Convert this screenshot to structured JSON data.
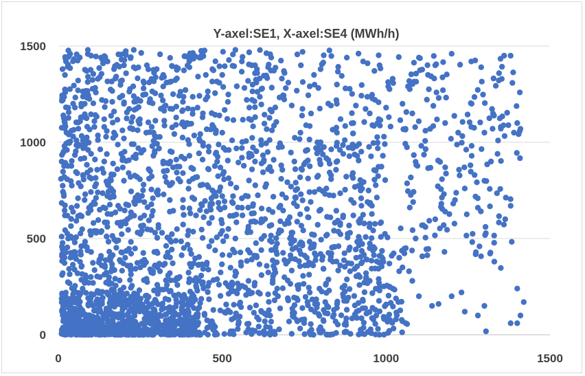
{
  "chart_data": {
    "type": "scatter",
    "title": "Y-axel:SE1, X-axel:SE4 (MWh/h)",
    "xlabel": "",
    "ylabel": "",
    "xlim": [
      0,
      1500
    ],
    "ylim": [
      0,
      1500
    ],
    "x_ticks": [
      "0",
      "500",
      "1000",
      "1500"
    ],
    "y_ticks": [
      "0",
      "500",
      "1000",
      "1500"
    ],
    "grid": "horizontal",
    "legend": "none",
    "marker_color": "#4472c4",
    "approximate_point_count": 3000,
    "note_visible": "",
    "series": [
      {
        "values": [
          [
            15,
            1140
          ],
          [
            10,
            900
          ],
          [
            8,
            810
          ],
          [
            40,
            1060
          ],
          [
            45,
            1030
          ],
          [
            55,
            1010
          ],
          [
            75,
            1010
          ],
          [
            60,
            1270
          ],
          [
            80,
            1250
          ],
          [
            70,
            1200
          ],
          [
            90,
            1480
          ],
          [
            100,
            1450
          ],
          [
            130,
            1440
          ],
          [
            150,
            1420
          ],
          [
            170,
            1380
          ],
          [
            200,
            1400
          ],
          [
            230,
            1390
          ],
          [
            270,
            1400
          ],
          [
            300,
            1380
          ],
          [
            320,
            1350
          ],
          [
            360,
            1390
          ],
          [
            400,
            1390
          ],
          [
            430,
            1440
          ],
          [
            450,
            1350
          ],
          [
            470,
            1380
          ],
          [
            500,
            1350
          ],
          [
            540,
            1480
          ],
          [
            560,
            1420
          ],
          [
            600,
            1400
          ],
          [
            640,
            1390
          ],
          [
            690,
            1360
          ],
          [
            740,
            1400
          ],
          [
            780,
            1350
          ],
          [
            800,
            1380
          ],
          [
            850,
            1300
          ],
          [
            880,
            1440
          ],
          [
            930,
            1420
          ],
          [
            980,
            1400
          ],
          [
            1020,
            1330
          ],
          [
            1100,
            1440
          ],
          [
            1150,
            1400
          ],
          [
            1200,
            1460
          ],
          [
            1260,
            1420
          ],
          [
            1290,
            1390
          ],
          [
            1360,
            1450
          ],
          [
            1380,
            1450
          ],
          [
            1400,
            1100
          ],
          [
            1410,
            1070
          ],
          [
            1390,
            1050
          ],
          [
            1350,
            1080
          ],
          [
            1300,
            1050
          ],
          [
            1260,
            1080
          ],
          [
            1220,
            1050
          ],
          [
            1180,
            1100
          ],
          [
            1120,
            1060
          ],
          [
            1080,
            1150
          ],
          [
            1050,
            1200
          ],
          [
            1000,
            1180
          ],
          [
            950,
            1150
          ],
          [
            900,
            1100
          ],
          [
            850,
            1050
          ],
          [
            800,
            1000
          ],
          [
            760,
            960
          ],
          [
            720,
            900
          ],
          [
            680,
            880
          ],
          [
            640,
            860
          ],
          [
            600,
            900
          ],
          [
            560,
            920
          ],
          [
            520,
            960
          ],
          [
            480,
            940
          ],
          [
            440,
            910
          ],
          [
            400,
            930
          ],
          [
            360,
            910
          ],
          [
            320,
            890
          ],
          [
            280,
            850
          ],
          [
            240,
            820
          ],
          [
            200,
            800
          ],
          [
            160,
            760
          ],
          [
            120,
            740
          ],
          [
            80,
            700
          ],
          [
            40,
            660
          ],
          [
            20,
            620
          ],
          [
            10,
            510
          ],
          [
            30,
            500
          ],
          [
            50,
            480
          ],
          [
            70,
            460
          ],
          [
            100,
            430
          ],
          [
            130,
            410
          ],
          [
            160,
            400
          ],
          [
            190,
            380
          ],
          [
            220,
            360
          ],
          [
            250,
            350
          ],
          [
            280,
            340
          ],
          [
            310,
            330
          ],
          [
            340,
            320
          ],
          [
            370,
            300
          ],
          [
            400,
            290
          ],
          [
            430,
            280
          ],
          [
            460,
            270
          ],
          [
            490,
            260
          ],
          [
            520,
            250
          ],
          [
            550,
            240
          ],
          [
            580,
            230
          ],
          [
            610,
            220
          ],
          [
            640,
            210
          ],
          [
            670,
            200
          ],
          [
            700,
            190
          ],
          [
            730,
            180
          ],
          [
            760,
            170
          ],
          [
            790,
            160
          ],
          [
            820,
            150
          ],
          [
            850,
            140
          ],
          [
            880,
            130
          ],
          [
            910,
            120
          ],
          [
            940,
            110
          ],
          [
            970,
            100
          ],
          [
            1000,
            90
          ],
          [
            1030,
            80
          ],
          [
            1050,
            70
          ],
          [
            1060,
            60
          ],
          [
            1380,
            60
          ],
          [
            1400,
            60
          ],
          [
            1410,
            100
          ],
          [
            1420,
            170
          ],
          [
            1400,
            240
          ],
          [
            1330,
            380
          ],
          [
            1300,
            150
          ],
          [
            1280,
            100
          ],
          [
            1240,
            120
          ],
          [
            1230,
            220
          ],
          [
            1200,
            200
          ],
          [
            1160,
            160
          ],
          [
            1140,
            150
          ],
          [
            1100,
            200
          ],
          [
            1080,
            280
          ],
          [
            1070,
            330
          ],
          [
            1050,
            350
          ],
          [
            1040,
            400
          ],
          [
            1060,
            450
          ],
          [
            1090,
            500
          ],
          [
            1120,
            560
          ],
          [
            1150,
            600
          ],
          [
            1180,
            640
          ],
          [
            1210,
            700
          ],
          [
            1240,
            760
          ],
          [
            1270,
            830
          ],
          [
            1300,
            800
          ],
          [
            1320,
            900
          ],
          [
            1340,
            940
          ],
          [
            1280,
            660
          ],
          [
            950,
            680
          ],
          [
            900,
            620
          ],
          [
            860,
            580
          ],
          [
            820,
            520
          ],
          [
            780,
            470
          ],
          [
            740,
            420
          ],
          [
            700,
            380
          ],
          [
            660,
            340
          ],
          [
            620,
            310
          ],
          [
            580,
            280
          ],
          [
            540,
            500
          ],
          [
            500,
            540
          ],
          [
            460,
            580
          ],
          [
            420,
            620
          ],
          [
            380,
            660
          ],
          [
            340,
            700
          ],
          [
            300,
            740
          ],
          [
            260,
            780
          ],
          [
            220,
            820
          ],
          [
            180,
            860
          ],
          [
            140,
            900
          ],
          [
            100,
            940
          ],
          [
            60,
            980
          ],
          [
            30,
            1000
          ],
          [
            20,
            1100
          ],
          [
            25,
            1050
          ],
          [
            110,
            1080
          ],
          [
            140,
            1120
          ],
          [
            170,
            1160
          ],
          [
            200,
            1200
          ],
          [
            230,
            1240
          ],
          [
            260,
            1280
          ],
          [
            290,
            1320
          ],
          [
            320,
            1290
          ],
          [
            350,
            1250
          ],
          [
            380,
            1210
          ],
          [
            410,
            1170
          ],
          [
            440,
            1130
          ],
          [
            470,
            1090
          ],
          [
            500,
            1050
          ],
          [
            530,
            1010
          ],
          [
            560,
            970
          ],
          [
            590,
            930
          ],
          [
            620,
            890
          ],
          [
            650,
            850
          ],
          [
            680,
            810
          ],
          [
            710,
            770
          ],
          [
            740,
            730
          ],
          [
            770,
            690
          ],
          [
            800,
            650
          ],
          [
            830,
            610
          ],
          [
            860,
            570
          ],
          [
            890,
            530
          ],
          [
            920,
            490
          ],
          [
            950,
            450
          ],
          [
            980,
            410
          ],
          [
            1010,
            370
          ],
          [
            1040,
            330
          ],
          [
            1010,
            250
          ],
          [
            980,
            230
          ],
          [
            950,
            280
          ],
          [
            920,
            300
          ],
          [
            890,
            330
          ],
          [
            860,
            360
          ],
          [
            830,
            390
          ],
          [
            800,
            420
          ],
          [
            770,
            450
          ],
          [
            740,
            480
          ],
          [
            710,
            510
          ],
          [
            680,
            540
          ],
          [
            650,
            570
          ],
          [
            620,
            600
          ],
          [
            590,
            630
          ],
          [
            560,
            660
          ],
          [
            530,
            690
          ],
          [
            500,
            720
          ],
          [
            470,
            750
          ],
          [
            440,
            780
          ],
          [
            410,
            810
          ],
          [
            380,
            840
          ],
          [
            350,
            870
          ],
          [
            320,
            900
          ],
          [
            290,
            930
          ],
          [
            260,
            960
          ],
          [
            230,
            990
          ],
          [
            200,
            1020
          ],
          [
            170,
            1050
          ],
          [
            140,
            1080
          ],
          [
            110,
            1110
          ],
          [
            80,
            1140
          ]
        ]
      }
    ]
  }
}
